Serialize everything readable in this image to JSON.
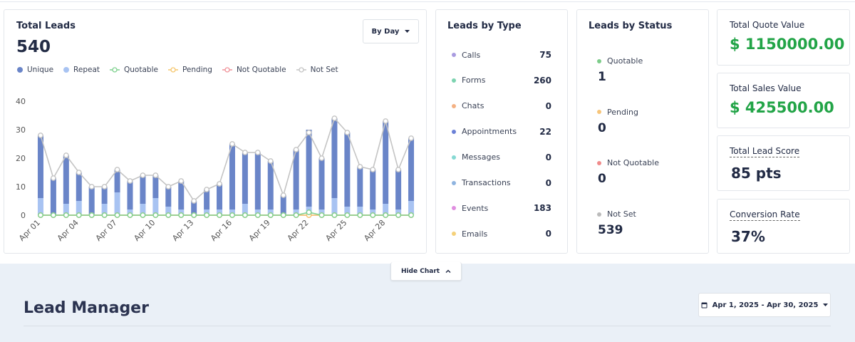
{
  "total_leads": {
    "title": "Total Leads",
    "value": 540,
    "period": "By Day",
    "chart": {
      "type": "bar",
      "stacked": true,
      "categories": [
        "Apr 01",
        null,
        null,
        "Apr 04",
        null,
        null,
        "Apr 07",
        null,
        null,
        "Apr 10",
        null,
        null,
        "Apr 13",
        null,
        null,
        "Apr 16",
        null,
        null,
        "Apr 19",
        null,
        null,
        "Apr 22",
        null,
        null,
        "Apr 25",
        null,
        null,
        "Apr 28",
        null,
        null
      ],
      "series": [
        {
          "name": "Unique",
          "type": "bar",
          "color": "#6a85c8",
          "values": [
            22,
            13,
            17,
            10,
            10,
            6,
            8,
            10,
            10,
            8,
            7,
            10,
            5,
            7,
            9,
            23,
            18,
            20,
            17,
            7,
            21,
            27,
            18,
            28,
            26,
            14,
            14,
            29,
            14,
            22
          ]
        },
        {
          "name": "Repeat",
          "type": "bar",
          "color": "#a8c3f2",
          "values": [
            6,
            0,
            4,
            5,
            0,
            4,
            8,
            2,
            4,
            6,
            3,
            2,
            0,
            2,
            2,
            2,
            4,
            2,
            2,
            0,
            2,
            3,
            2,
            6,
            3,
            3,
            2,
            4,
            2,
            5
          ]
        },
        {
          "name": "Quotable",
          "type": "line",
          "color": "#7fd18f",
          "values": [
            0,
            0,
            0,
            0,
            0,
            0,
            0,
            0,
            0,
            0,
            0,
            0,
            0,
            0,
            0,
            0,
            0,
            0,
            0,
            0,
            0,
            1,
            0,
            0,
            0,
            0,
            0,
            0,
            0,
            0
          ]
        },
        {
          "name": "Pending",
          "type": "line",
          "color": "#f5c76e",
          "values": [
            0,
            0,
            0,
            0,
            0,
            0,
            0,
            0,
            0,
            0,
            0,
            0,
            0,
            0,
            0,
            0,
            0,
            0,
            0,
            0,
            0,
            0,
            0,
            0,
            0,
            0,
            0,
            0,
            0,
            0
          ]
        },
        {
          "name": "Not Quotable",
          "type": "line",
          "color": "#f0939a",
          "values": [
            0,
            0,
            0,
            0,
            0,
            0,
            0,
            0,
            0,
            0,
            0,
            0,
            0,
            0,
            0,
            0,
            0,
            0,
            0,
            0,
            0,
            0,
            0,
            0,
            0,
            0,
            0,
            0,
            0,
            0
          ]
        },
        {
          "name": "Not Set",
          "type": "line",
          "color": "#c4c4c4",
          "values": [
            28,
            13,
            21,
            15,
            10,
            10,
            16,
            12,
            14,
            14,
            10,
            12,
            5,
            9,
            11,
            25,
            22,
            22,
            19,
            7,
            23,
            29,
            20,
            34,
            29,
            17,
            16,
            33,
            16,
            27
          ]
        }
      ],
      "ylim": [
        0,
        40
      ],
      "yticks": [
        0,
        10,
        20,
        30,
        40
      ]
    }
  },
  "leads_by_type": {
    "title": "Leads by Type",
    "items": [
      {
        "label": "Calls",
        "value": 75,
        "color": "#a99be0"
      },
      {
        "label": "Forms",
        "value": 260,
        "color": "#7dd3b0"
      },
      {
        "label": "Chats",
        "value": 0,
        "color": "#f4b183"
      },
      {
        "label": "Appointments",
        "value": 22,
        "color": "#6b80d6"
      },
      {
        "label": "Messages",
        "value": 0,
        "color": "#86d9d3"
      },
      {
        "label": "Transactions",
        "value": 0,
        "color": "#8fb4e0"
      },
      {
        "label": "Events",
        "value": 183,
        "color": "#e08ee0"
      },
      {
        "label": "Emails",
        "value": 0,
        "color": "#f5d17a"
      }
    ]
  },
  "leads_by_status": {
    "title": "Leads by Status",
    "items": [
      {
        "label": "Quotable",
        "value": 1,
        "color": "#7dcc8a"
      },
      {
        "label": "Pending",
        "value": 0,
        "color": "#f7c57a"
      },
      {
        "label": "Not Quotable",
        "value": 0,
        "color": "#f08b8b"
      },
      {
        "label": "Not Set",
        "value": 539,
        "color": "#bbbbbb"
      }
    ]
  },
  "kpis": [
    {
      "label": "Total Quote Value",
      "value": "$ 1150000.00",
      "color": "#22a447"
    },
    {
      "label": "Total Sales Value",
      "value": "$ 425500.00",
      "color": "#22a447"
    },
    {
      "label": "Total Lead Score",
      "value": "85 pts",
      "color": "#222b45"
    },
    {
      "label": "Conversion Rate",
      "value": "37%",
      "color": "#222b45"
    }
  ],
  "hide_chart": "Hide Chart",
  "lead_manager": {
    "title": "Lead Manager",
    "date_range": "Apr 1, 2025 - Apr 30, 2025"
  }
}
